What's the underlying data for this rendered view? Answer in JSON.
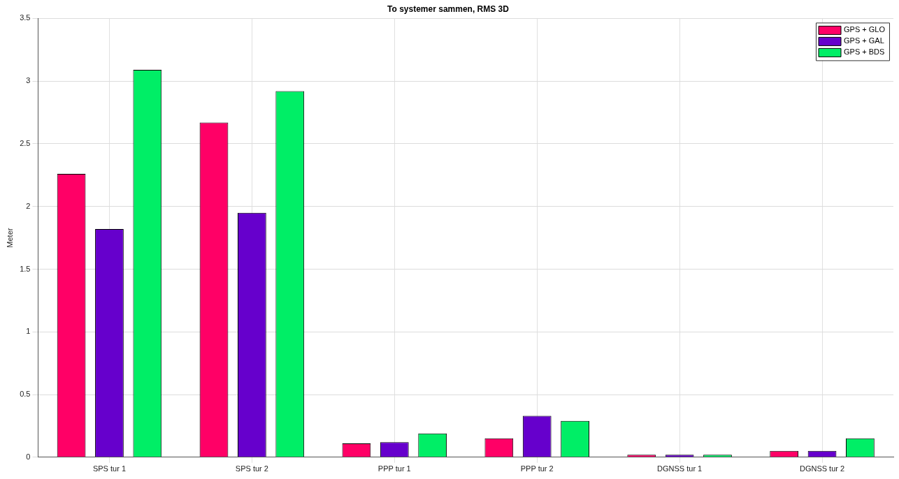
{
  "chart_data": {
    "type": "bar",
    "title": "To systemer sammen, RMS 3D",
    "ylabel": "Meter",
    "categories": [
      "SPS tur 1",
      "SPS tur 2",
      "PPP tur 1",
      "PPP tur 2",
      "DGNSS tur 1",
      "DGNSS tur 2"
    ],
    "series": [
      {
        "name": "GPS + GLO",
        "color": "#ff0066",
        "values": [
          2.26,
          2.67,
          0.11,
          0.15,
          0.02,
          0.05
        ]
      },
      {
        "name": "GPS + GAL",
        "color": "#6600cc",
        "values": [
          1.82,
          1.95,
          0.12,
          0.33,
          0.02,
          0.05
        ]
      },
      {
        "name": "GPS + BDS",
        "color": "#00ee66",
        "values": [
          3.09,
          2.92,
          0.19,
          0.29,
          0.02,
          0.15
        ]
      }
    ],
    "ylim": [
      0,
      3.5
    ],
    "yticks": [
      0,
      0.5,
      1,
      1.5,
      2,
      2.5,
      3,
      3.5
    ],
    "grid": true,
    "legend": "top right"
  }
}
